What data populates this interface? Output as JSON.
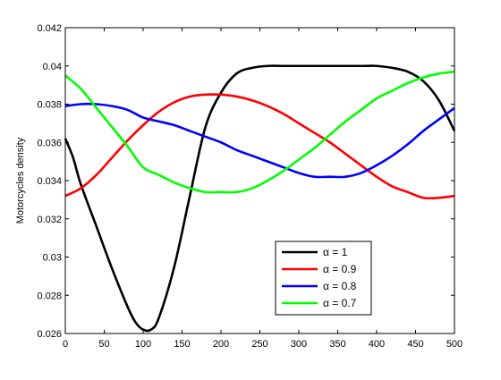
{
  "chart_data": {
    "type": "line",
    "title": "",
    "xlabel": "",
    "ylabel": "Motorcycles density",
    "xlim": [
      0,
      500
    ],
    "ylim": [
      0.026,
      0.042
    ],
    "x_ticks": [
      0,
      50,
      100,
      150,
      200,
      250,
      300,
      350,
      400,
      450,
      500
    ],
    "x_tick_labels": [
      "0",
      "50",
      "100",
      "150",
      "200",
      "250",
      "300",
      "350",
      "400",
      "450",
      "500"
    ],
    "y_ticks": [
      0.026,
      0.028,
      0.03,
      0.032,
      0.034,
      0.036,
      0.038,
      0.04,
      0.042
    ],
    "y_tick_labels": [
      "0.026",
      "0.028",
      "0.03",
      "0.032",
      "0.034",
      "0.036",
      "0.038",
      "0.04",
      "0.042"
    ],
    "grid": false,
    "legend_position": "bottom-right",
    "series": [
      {
        "name": "α = 1",
        "color": "#000000",
        "x": [
          0,
          10,
          20,
          40,
          60,
          80,
          90,
          100,
          110,
          120,
          140,
          160,
          180,
          200,
          220,
          240,
          260,
          280,
          300,
          340,
          380,
          400,
          420,
          440,
          460,
          480,
          500
        ],
        "y": [
          0.0362,
          0.0352,
          0.0338,
          0.0316,
          0.0294,
          0.0274,
          0.0266,
          0.0262,
          0.0262,
          0.0268,
          0.0295,
          0.0332,
          0.0368,
          0.0386,
          0.0396,
          0.0399,
          0.04,
          0.04,
          0.04,
          0.04,
          0.04,
          0.04,
          0.0399,
          0.0397,
          0.0392,
          0.0382,
          0.0366
        ]
      },
      {
        "name": "α = 0.9",
        "color": "#ff0000",
        "x": [
          0,
          20,
          40,
          60,
          80,
          100,
          120,
          140,
          160,
          180,
          200,
          220,
          240,
          260,
          280,
          300,
          320,
          340,
          360,
          380,
          400,
          420,
          440,
          460,
          480,
          500
        ],
        "y": [
          0.0332,
          0.0336,
          0.0343,
          0.0352,
          0.0361,
          0.0369,
          0.0376,
          0.0381,
          0.0384,
          0.0385,
          0.0385,
          0.0384,
          0.0382,
          0.0379,
          0.0375,
          0.037,
          0.0365,
          0.036,
          0.0354,
          0.0348,
          0.0342,
          0.0337,
          0.0334,
          0.0331,
          0.0331,
          0.0332
        ]
      },
      {
        "name": "α = 0.8",
        "color": "#0000ff",
        "x": [
          0,
          20,
          40,
          60,
          80,
          100,
          120,
          140,
          160,
          180,
          200,
          220,
          240,
          260,
          280,
          300,
          320,
          340,
          360,
          380,
          400,
          420,
          440,
          460,
          480,
          500
        ],
        "y": [
          0.0379,
          0.038,
          0.038,
          0.0379,
          0.0377,
          0.0373,
          0.0371,
          0.0369,
          0.0366,
          0.0363,
          0.036,
          0.0356,
          0.0353,
          0.035,
          0.0347,
          0.0344,
          0.0342,
          0.0342,
          0.0342,
          0.0344,
          0.0348,
          0.0353,
          0.0359,
          0.0366,
          0.0372,
          0.0378
        ]
      },
      {
        "name": "α = 0.7",
        "color": "#00ff00",
        "x": [
          0,
          20,
          40,
          60,
          80,
          100,
          120,
          140,
          160,
          180,
          200,
          220,
          240,
          260,
          280,
          300,
          320,
          340,
          360,
          380,
          400,
          420,
          440,
          460,
          480,
          500
        ],
        "y": [
          0.0395,
          0.0388,
          0.0378,
          0.0368,
          0.0358,
          0.0347,
          0.0343,
          0.0339,
          0.0336,
          0.0334,
          0.0334,
          0.0334,
          0.0336,
          0.034,
          0.0345,
          0.0351,
          0.0357,
          0.0364,
          0.0371,
          0.0377,
          0.0383,
          0.0387,
          0.0391,
          0.0394,
          0.0396,
          0.0397
        ]
      }
    ]
  }
}
